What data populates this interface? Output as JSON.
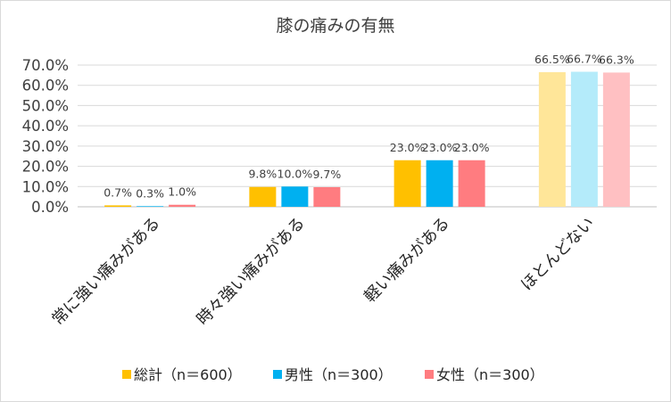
{
  "chart_data": {
    "type": "bar",
    "title": "膝の痛みの有無",
    "categories": [
      "常に強い痛みがある",
      "時々強い痛みがある",
      "軽い痛みがある",
      "ほとんどない"
    ],
    "series": [
      {
        "name": "総計（n＝600）",
        "values": [
          0.7,
          9.8,
          23.0,
          66.5
        ],
        "labels": [
          "0.7%",
          "9.8%",
          "23.0%",
          "66.5%"
        ],
        "color": "#FFC000",
        "color_light": "#FFE699"
      },
      {
        "name": "男性（n＝300）",
        "values": [
          0.3,
          10.0,
          23.0,
          66.7
        ],
        "labels": [
          "0.3%",
          "10.0%",
          "23.0%",
          "66.7%"
        ],
        "color": "#00B0F0",
        "color_light": "#B4EBFA"
      },
      {
        "name": "女性（n＝300）",
        "values": [
          1.0,
          9.7,
          23.0,
          66.3
        ],
        "labels": [
          "1.0%",
          "9.7%",
          "23.0%",
          "66.3%"
        ],
        "color": "#FF7C80",
        "color_light": "#FFC0C2"
      }
    ],
    "highlight_category_index": 3,
    "y_ticks": [
      "0.0%",
      "10.0%",
      "20.0%",
      "30.0%",
      "40.0%",
      "50.0%",
      "60.0%",
      "70.0%"
    ],
    "ylim": [
      0,
      70
    ],
    "grid": true,
    "legend_position": "bottom",
    "xlabel": "",
    "ylabel": ""
  }
}
